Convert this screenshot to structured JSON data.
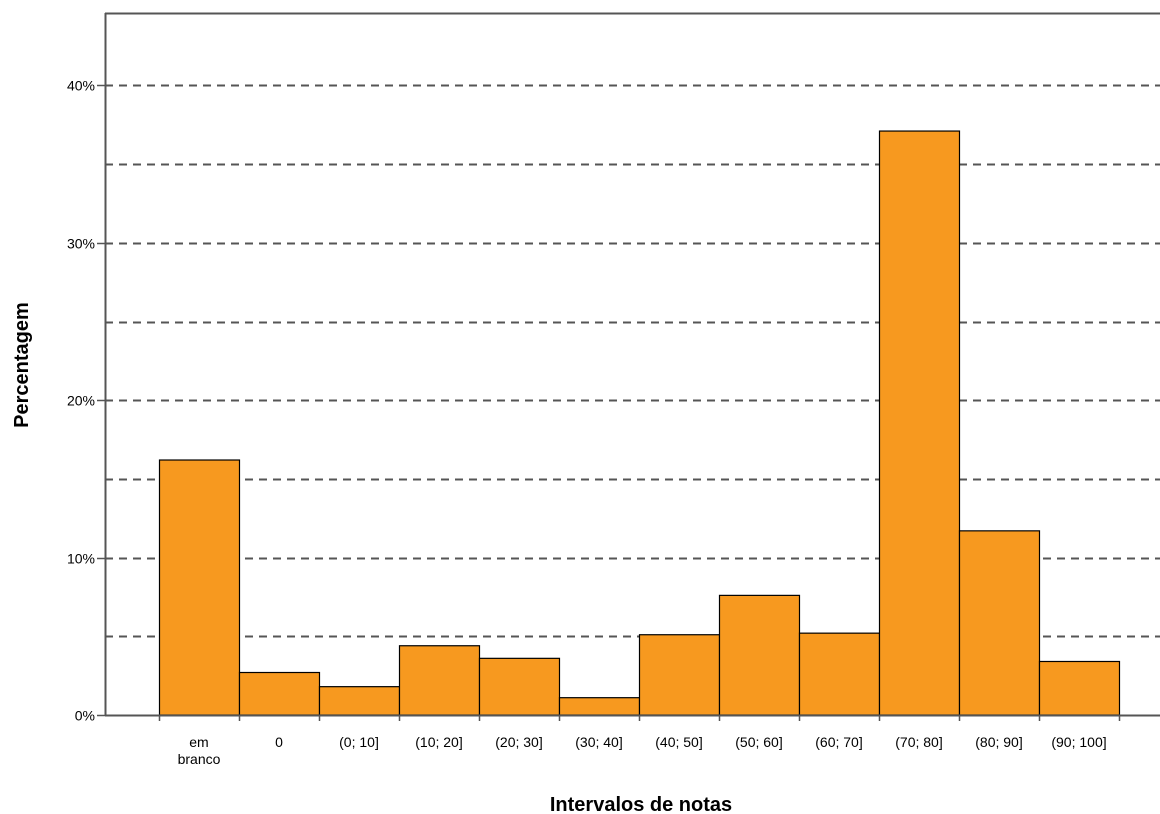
{
  "chart_data": {
    "type": "bar",
    "title": "",
    "xlabel": "Intervalos de notas",
    "ylabel": "Percentagem",
    "categories": [
      [
        "em",
        "branco"
      ],
      [
        "0"
      ],
      [
        "(0; 10]"
      ],
      [
        "(10; 20]"
      ],
      [
        "(20; 30]"
      ],
      [
        "(30; 40]"
      ],
      [
        "(40; 50]"
      ],
      [
        "(50; 60]"
      ],
      [
        "(60; 70]"
      ],
      [
        "(70; 80]"
      ],
      [
        "(80; 90]"
      ],
      [
        "(90; 100]"
      ]
    ],
    "values": [
      16.2,
      2.7,
      1.8,
      4.4,
      3.6,
      1.1,
      5.1,
      7.6,
      5.2,
      37.1,
      11.7,
      3.4
    ],
    "ylim": [
      0,
      44.6
    ],
    "yticks": [
      0,
      10,
      20,
      30,
      40
    ],
    "ytick_labels": [
      "0%",
      "10%",
      "20%",
      "30%",
      "40%"
    ],
    "gridlines": [
      5,
      10,
      15,
      20,
      25,
      30,
      35,
      40
    ],
    "grid": "dashed horizontal",
    "legend": "none",
    "colors": {
      "bar_fill": "#F7991F",
      "bar_edge": "#000000",
      "grid": "#555555",
      "frame": "#555555"
    }
  }
}
